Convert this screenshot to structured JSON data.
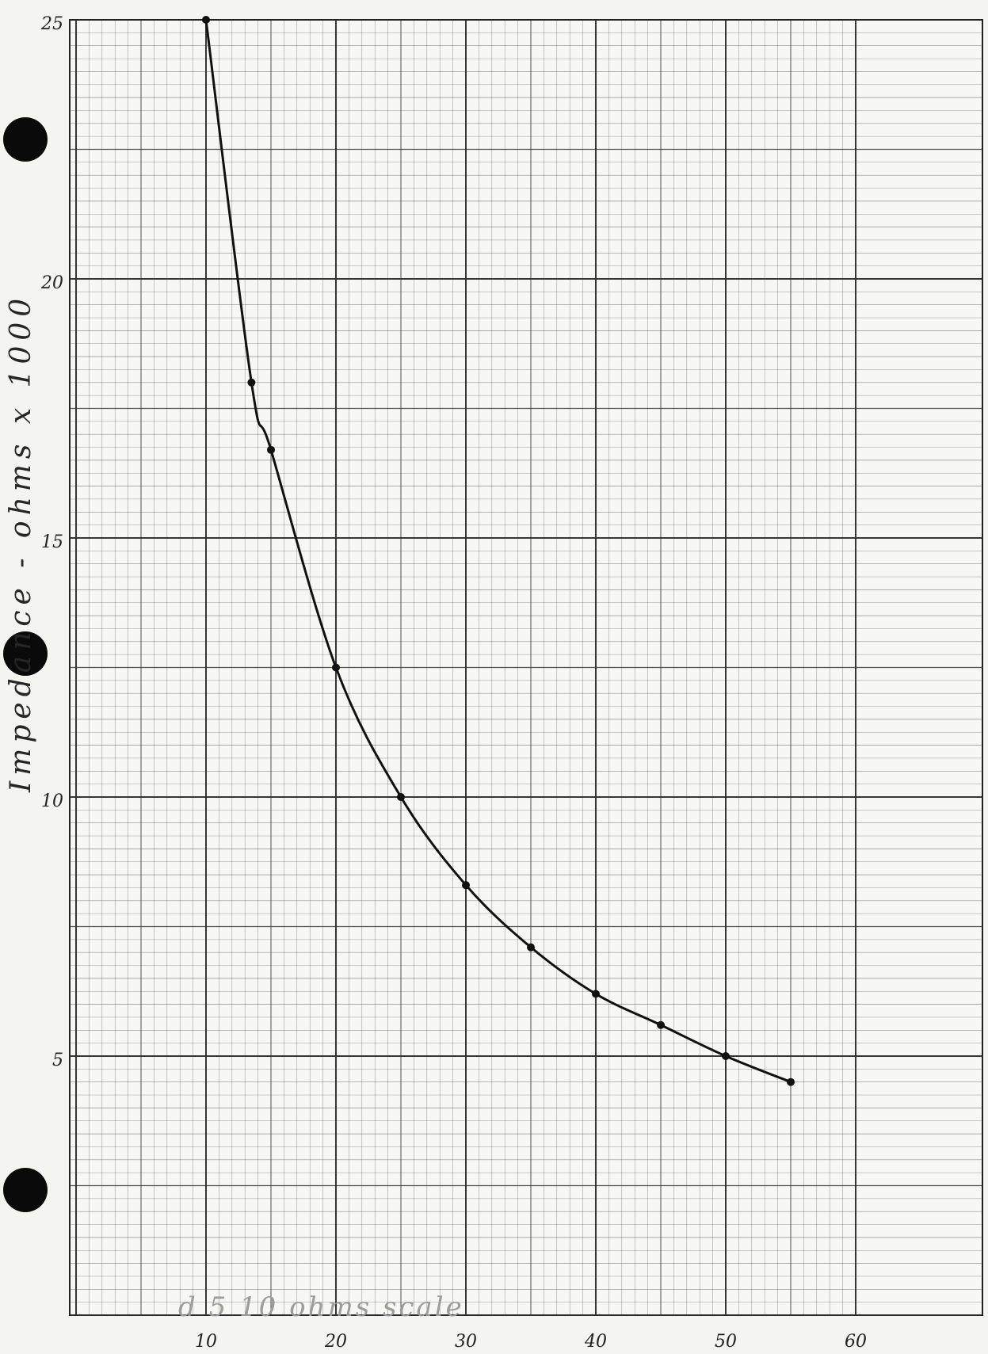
{
  "chart_data": {
    "type": "line",
    "title": "",
    "xlabel": "d 5 10 ohms scale",
    "ylabel": "Impedance - ohms x 1000",
    "xlim": [
      0,
      70
    ],
    "ylim": [
      0,
      25
    ],
    "x_ticks": [
      "10",
      "20",
      "30",
      "40",
      "50",
      "60"
    ],
    "y_ticks": [
      "5",
      "10",
      "15",
      "20",
      "25"
    ],
    "grid": true,
    "series": [
      {
        "x": [
          10,
          13.5,
          15,
          20,
          25,
          30,
          35,
          40,
          45,
          50,
          55
        ],
        "values": [
          25,
          18,
          16.7,
          12.5,
          10,
          8.3,
          7.1,
          6.2,
          5.6,
          5.0,
          4.5
        ]
      }
    ]
  },
  "colors": {
    "paper": "#f4f4f1",
    "grid": "#2b2b2b",
    "curve": "#111111"
  }
}
